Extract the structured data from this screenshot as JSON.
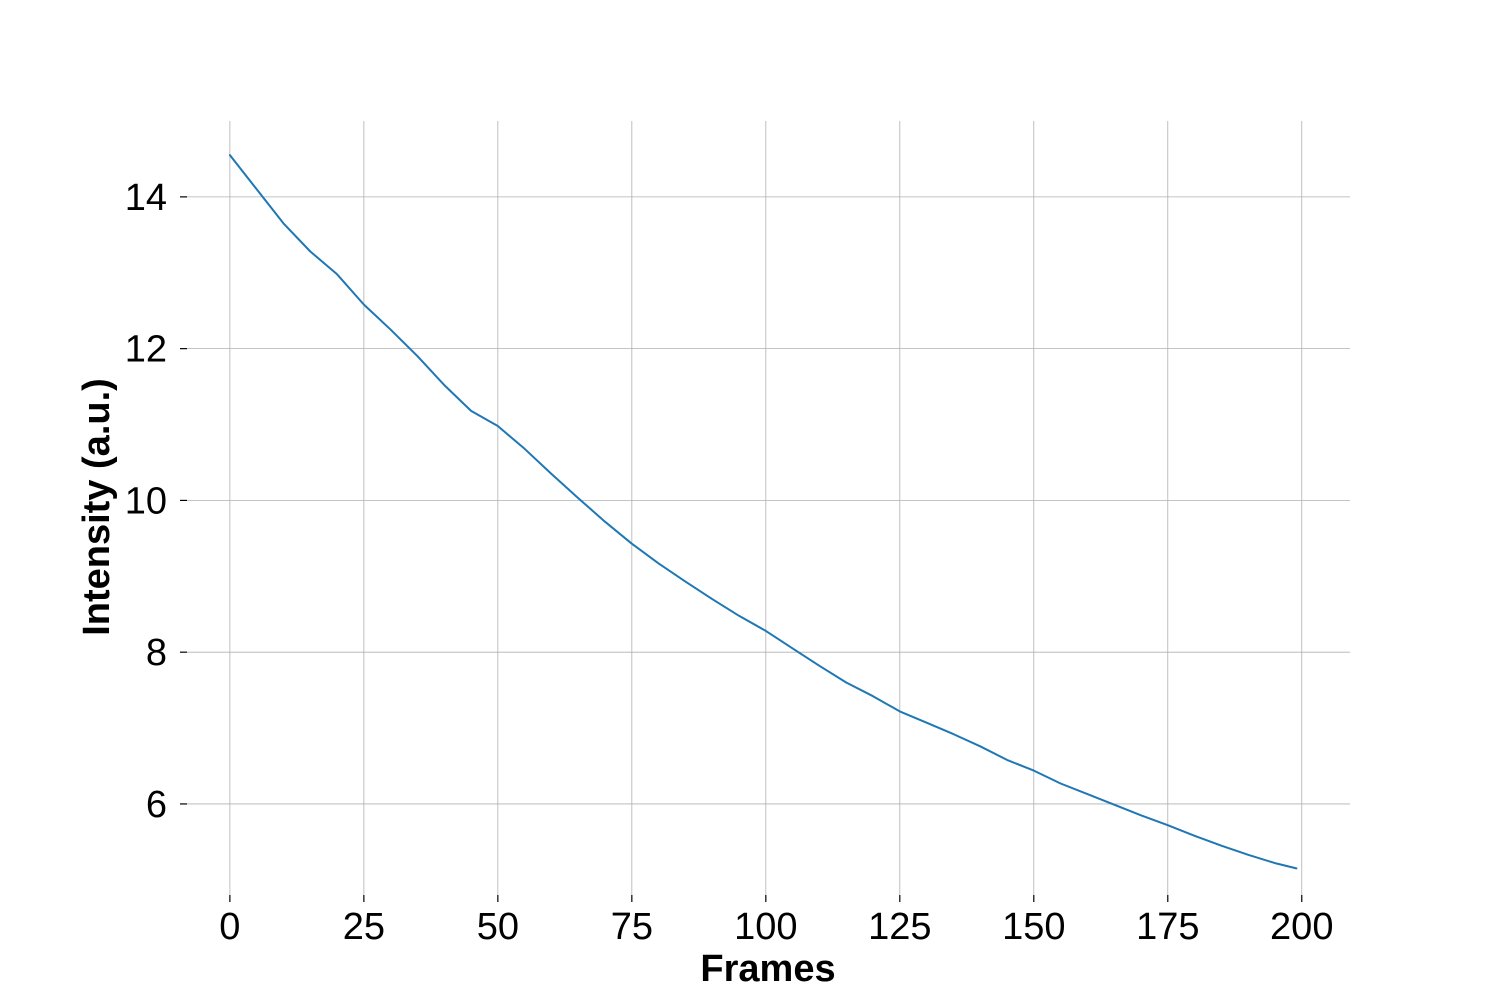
{
  "chart_data": {
    "type": "line",
    "title": "",
    "xlabel": "Frames",
    "ylabel": "Intensity (a.u.)",
    "xlim": [
      -8,
      209
    ],
    "ylim": [
      4.8,
      15.0
    ],
    "xticks": [
      0,
      25,
      50,
      75,
      100,
      125,
      150,
      175,
      200
    ],
    "yticks": [
      6,
      8,
      10,
      12,
      14
    ],
    "grid": true,
    "legend": "none",
    "colors": {
      "series": "#1f77b4",
      "grid": "#b0b0b0",
      "text": "#000000"
    },
    "series": [
      {
        "x": [
          0,
          5,
          10,
          15,
          20,
          25,
          30,
          35,
          40,
          45,
          50,
          55,
          60,
          65,
          70,
          75,
          80,
          85,
          90,
          95,
          100,
          105,
          110,
          115,
          120,
          125,
          130,
          135,
          140,
          145,
          150,
          155,
          160,
          165,
          170,
          175,
          180,
          185,
          190,
          195,
          199
        ],
        "values": [
          14.55,
          14.1,
          13.65,
          13.28,
          12.98,
          12.58,
          12.25,
          11.9,
          11.52,
          11.18,
          10.98,
          10.68,
          10.35,
          10.03,
          9.72,
          9.43,
          9.17,
          8.93,
          8.7,
          8.48,
          8.28,
          8.05,
          7.82,
          7.6,
          7.42,
          7.22,
          7.07,
          6.92,
          6.76,
          6.58,
          6.44,
          6.27,
          6.13,
          5.99,
          5.85,
          5.72,
          5.58,
          5.45,
          5.33,
          5.22,
          5.15
        ]
      }
    ]
  }
}
